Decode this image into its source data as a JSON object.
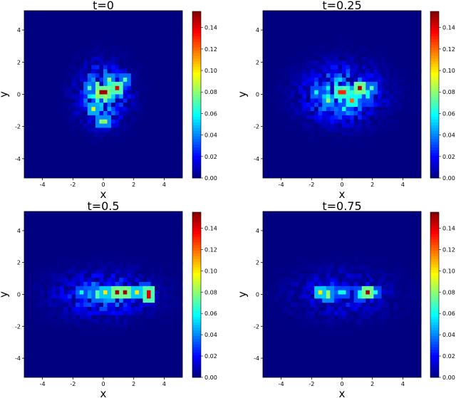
{
  "chart_data": [
    {
      "type": "heatmap",
      "title": "t=0",
      "xlabel": "x",
      "ylabel": "y",
      "xlim": [
        -5.2,
        5.2
      ],
      "ylim": [
        -5.2,
        5.2
      ],
      "xticks": [
        -4,
        -2,
        0,
        2,
        4
      ],
      "yticks": [
        -4,
        -2,
        0,
        2,
        4
      ],
      "colorbar": {
        "range": [
          0,
          0.155
        ],
        "ticks": [
          "0.00",
          "0.02",
          "0.04",
          "0.06",
          "0.08",
          "0.10",
          "0.12",
          "0.14"
        ],
        "colormap": "jet"
      },
      "bins": 40,
      "distribution": {
        "sx": 1.0,
        "sy": 1.1,
        "peak": 0.055
      },
      "hotspots": [
        [
          0,
          0.2,
          0.15
        ],
        [
          1,
          0.4,
          0.14
        ],
        [
          -0.6,
          -0.8,
          0.09
        ],
        [
          0.4,
          0.9,
          0.08
        ],
        [
          -1,
          0.5,
          0.07
        ],
        [
          1.5,
          0.9,
          0.07
        ],
        [
          0,
          -1.6,
          0.08
        ],
        [
          -0.4,
          -0.4,
          0.06
        ],
        [
          0.8,
          0.2,
          0.06
        ]
      ]
    },
    {
      "type": "heatmap",
      "title": "t=0.25",
      "xlabel": "x",
      "ylabel": "y",
      "xlim": [
        -5.2,
        5.2
      ],
      "ylim": [
        -5.2,
        5.2
      ],
      "xticks": [
        -4,
        -2,
        0,
        2,
        4
      ],
      "yticks": [
        -4,
        -2,
        0,
        2,
        4
      ],
      "colorbar": {
        "range": [
          0,
          0.155
        ],
        "ticks": [
          "0.00",
          "0.02",
          "0.04",
          "0.06",
          "0.08",
          "0.10",
          "0.12",
          "0.14"
        ],
        "colormap": "jet"
      },
      "bins": 40,
      "distribution": {
        "sx": 1.6,
        "sy": 1.1,
        "peak": 0.045
      },
      "hotspots": [
        [
          1.2,
          0.5,
          0.15
        ],
        [
          0,
          0.1,
          0.13
        ],
        [
          0.7,
          -0.3,
          0.12
        ],
        [
          -1,
          -0.4,
          0.08
        ],
        [
          2,
          0.3,
          0.07
        ],
        [
          1.6,
          0.0,
          0.06
        ],
        [
          -1.6,
          0.2,
          0.06
        ],
        [
          0.2,
          -0.9,
          0.06
        ]
      ]
    },
    {
      "type": "heatmap",
      "title": "t=0.5",
      "xlabel": "x",
      "ylabel": "y",
      "xlim": [
        -5.2,
        5.2
      ],
      "ylim": [
        -5.2,
        5.2
      ],
      "xticks": [
        -4,
        -2,
        0,
        2,
        4
      ],
      "yticks": [
        -4,
        -2,
        0,
        2,
        4
      ],
      "colorbar": {
        "range": [
          0,
          0.155
        ],
        "ticks": [
          "0.00",
          "0.02",
          "0.04",
          "0.06",
          "0.08",
          "0.10",
          "0.12",
          "0.14"
        ],
        "colormap": "jet"
      },
      "bins": 40,
      "distribution": {
        "sx": 2.0,
        "sy": 0.9,
        "peak": 0.03
      },
      "hotspots": [
        [
          0.8,
          0.1,
          0.15
        ],
        [
          1.5,
          0.1,
          0.15
        ],
        [
          3.0,
          0.0,
          0.14
        ],
        [
          0.2,
          0.1,
          0.1
        ],
        [
          2.3,
          0.1,
          0.1
        ],
        [
          -0.5,
          0.0,
          0.07
        ],
        [
          -1.4,
          0.1,
          0.06
        ],
        [
          2.7,
          0.5,
          0.06
        ]
      ]
    },
    {
      "type": "heatmap",
      "title": "t=0.75",
      "xlabel": "x",
      "ylabel": "y",
      "xlim": [
        -5.2,
        5.2
      ],
      "ylim": [
        -5.2,
        5.2
      ],
      "xticks": [
        -4,
        -2,
        0,
        2,
        4
      ],
      "yticks": [
        -4,
        -2,
        0,
        2,
        4
      ],
      "colorbar": {
        "range": [
          0,
          0.155
        ],
        "ticks": [
          "0.00",
          "0.02",
          "0.04",
          "0.06",
          "0.08",
          "0.10",
          "0.12",
          "0.14"
        ],
        "colormap": "jet"
      },
      "bins": 40,
      "distribution": {
        "sx": 2.0,
        "sy": 0.9,
        "peak": 0.022
      },
      "hotspots": [
        [
          1.8,
          0.1,
          0.15
        ],
        [
          -1.5,
          0.2,
          0.1
        ],
        [
          -1.0,
          0.0,
          0.08
        ],
        [
          0.0,
          0.1,
          0.06
        ],
        [
          1.2,
          0.0,
          0.06
        ],
        [
          2.3,
          0.2,
          0.06
        ]
      ]
    }
  ]
}
